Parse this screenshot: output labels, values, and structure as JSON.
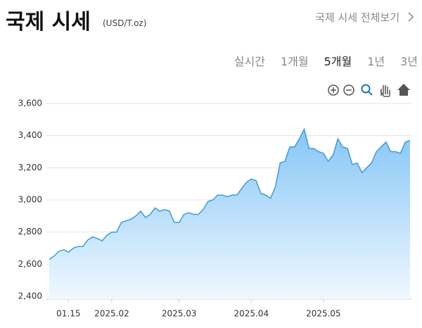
{
  "header": {
    "title": "국제 시세",
    "unit": "(USD/T.oz)",
    "link": "국제 시세 전체보기"
  },
  "tabs": {
    "items": [
      "실시간",
      "1개월",
      "5개월",
      "1년",
      "3년"
    ],
    "active": 2
  },
  "chart_data": {
    "type": "area",
    "color": "#3d9be0",
    "grid": true,
    "ylim": [
      2400,
      3600
    ],
    "yticks": [
      {
        "value": 2400,
        "label": "2,400"
      },
      {
        "value": 2600,
        "label": "2,600"
      },
      {
        "value": 2800,
        "label": "2,800"
      },
      {
        "value": 3000,
        "label": "3,000"
      },
      {
        "value": 3200,
        "label": "3,200"
      },
      {
        "value": 3400,
        "label": "3,400"
      },
      {
        "value": 3600,
        "label": "3,600"
      }
    ],
    "categories": [
      null,
      null,
      null,
      null,
      "01.15",
      null,
      null,
      null,
      null,
      null,
      null,
      null,
      null,
      "2025.02",
      null,
      null,
      null,
      null,
      null,
      null,
      null,
      null,
      null,
      null,
      null,
      null,
      null,
      "2025.03",
      null,
      null,
      null,
      null,
      null,
      null,
      null,
      null,
      null,
      null,
      null,
      null,
      null,
      null,
      "2025.04",
      null,
      null,
      null,
      null,
      null,
      null,
      null,
      null,
      null,
      null,
      null,
      null,
      null,
      null,
      "2025.05",
      null,
      null,
      null,
      null,
      null,
      null,
      null,
      null,
      null,
      null,
      null,
      null,
      null,
      null,
      null,
      null,
      null,
      null
    ],
    "values": [
      2630,
      2650,
      2680,
      2690,
      2675,
      2700,
      2710,
      2710,
      2750,
      2770,
      2760,
      2745,
      2780,
      2800,
      2800,
      2860,
      2870,
      2880,
      2900,
      2930,
      2890,
      2910,
      2950,
      2930,
      2940,
      2930,
      2860,
      2860,
      2910,
      2920,
      2910,
      2910,
      2940,
      2990,
      3000,
      3030,
      3030,
      3020,
      3030,
      3030,
      3070,
      3110,
      3130,
      3120,
      3040,
      3030,
      3010,
      3080,
      3230,
      3240,
      3330,
      3330,
      3380,
      3440,
      3320,
      3320,
      3300,
      3290,
      3240,
      3280,
      3380,
      3330,
      3320,
      3220,
      3230,
      3170,
      3200,
      3230,
      3300,
      3330,
      3360,
      3300,
      3300,
      3290,
      3360,
      3370
    ]
  }
}
